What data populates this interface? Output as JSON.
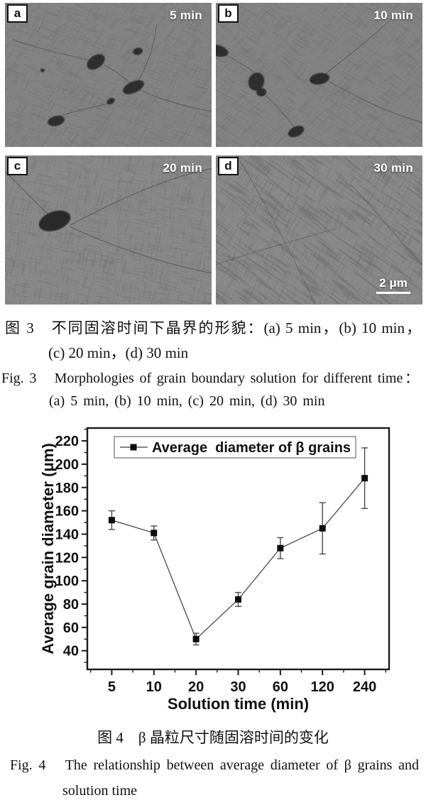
{
  "figure3": {
    "panels": [
      {
        "label": "a",
        "time": "5 min"
      },
      {
        "label": "b",
        "time": "10 min"
      },
      {
        "label": "c",
        "time": "20 min"
      },
      {
        "label": "d",
        "time": "30 min"
      }
    ],
    "scale_bar": "2 μm",
    "caption_cn_line1": "图 3　不同固溶时间下晶界的形貌：(a) 5 min，(b) 10 min，",
    "caption_cn_line2": "(c) 20 min，(d) 30 min",
    "caption_en_line1": "Fig. 3　Morphologies of grain boundary solution for different time：",
    "caption_en_line2": "(a) 5 min, (b) 10 min, (c) 20 min, (d) 30 min"
  },
  "chart_data": {
    "type": "line",
    "title": "",
    "categories": [
      "5",
      "10",
      "20",
      "30",
      "60",
      "120",
      "240"
    ],
    "series": [
      {
        "name": "Average  diameter of β grains",
        "values": [
          152,
          141,
          50,
          84,
          128,
          145,
          188
        ],
        "errors": [
          8,
          6,
          5,
          6,
          9,
          22,
          26
        ]
      }
    ],
    "xlabel": "Solution time (min)",
    "ylabel": "Average grain diameter (μm)",
    "ylim": [
      24,
      231
    ],
    "y_tick_min": 40,
    "y_tick_max": 220,
    "y_tick_step": 20,
    "y_minor_step": 10,
    "grid": false,
    "legend_position": "top-inside",
    "marker": "filled-square",
    "colors": {
      "line": "#3c3c3c",
      "marker": "#0d0d0d",
      "error": "#4a4a4a",
      "frame": "#1a1a1a",
      "legend_border": "#8c8c8c"
    }
  },
  "figure4": {
    "caption_cn": "图 4　β 晶粒尺寸随固溶时间的变化",
    "caption_en_line1": "Fig. 4　The relationship between average diameter of β grains and",
    "caption_en_line2": "solution time"
  }
}
